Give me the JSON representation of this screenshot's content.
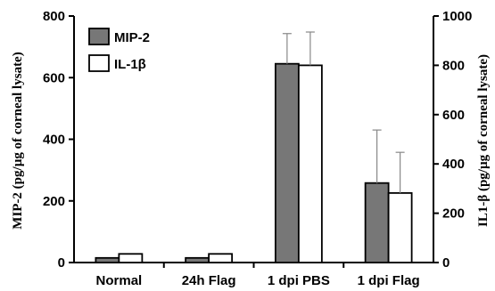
{
  "chart_data": {
    "type": "bar",
    "categories": [
      "Normal",
      "24h Flag",
      "1 dpi PBS",
      "1 dpi Flag"
    ],
    "series": [
      {
        "name": "MIP-2",
        "axis": "left",
        "color": "#777777",
        "values": [
          15,
          15,
          645,
          258
        ],
        "errors": [
          0,
          0,
          98,
          172
        ]
      },
      {
        "name": "IL-1β",
        "axis": "right",
        "color": "#ffffff",
        "values": [
          35,
          35,
          800,
          282
        ],
        "errors": [
          0,
          0,
          135,
          165
        ]
      }
    ],
    "ylabel": "MIP-2 (pg/µg of corneal lysate)",
    "y2label": "IL1-β (pg/µg of corneal lysate)",
    "ylim": [
      0,
      800
    ],
    "y2lim": [
      0,
      1000
    ],
    "yticks": [
      "0",
      "200",
      "400",
      "600",
      "800"
    ],
    "y2ticks": [
      "0",
      "200",
      "400",
      "600",
      "800",
      "1000"
    ],
    "legend_position": "top-left",
    "grid": false
  }
}
